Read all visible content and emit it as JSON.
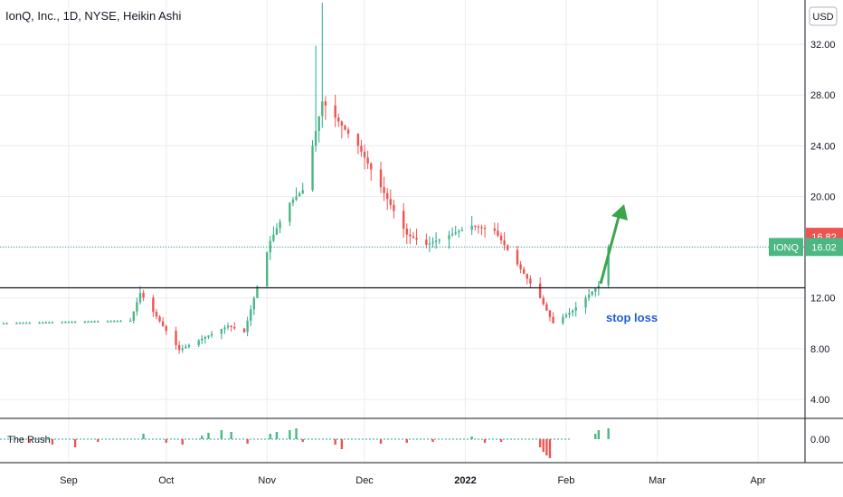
{
  "chart_data": {
    "type": "candlestick",
    "title": "IonQ, Inc., 1D, NYSE, Heikin Ashi",
    "currency": "USD",
    "symbol": "IONQ",
    "last_price": "16.02",
    "last_close_label": "16.82",
    "ylim": [
      2.5,
      35.5
    ],
    "y_ticks": [
      "4.00",
      "8.00",
      "12.00",
      "16.00",
      "20.00",
      "24.00",
      "28.00",
      "32.00"
    ],
    "x_ticks": [
      "Sep",
      "Oct",
      "Nov",
      "Dec",
      "2022",
      "Feb",
      "Mar",
      "Apr"
    ],
    "stop_loss": {
      "value": 12.8,
      "label": "stop loss"
    },
    "indicator": {
      "name": "The Rush",
      "zero_label": "0.00"
    },
    "colors": {
      "up": "#26a69a",
      "up_body": "#4cb782",
      "down": "#ef5350",
      "grid": "#e9ecf0",
      "arrow": "#3aa64a",
      "annotation": "#1e5bd8",
      "last_badge": "#ef5350",
      "symbol_badge": "#4cb782"
    },
    "anchors": [
      {
        "date": "2021-08-12",
        "price": 10.0
      },
      {
        "date": "2021-09-20",
        "price": 10.2
      },
      {
        "date": "2021-09-23",
        "price": 12.4
      },
      {
        "date": "2021-10-05",
        "price": 7.9
      },
      {
        "date": "2021-10-20",
        "price": 9.8
      },
      {
        "date": "2021-10-25",
        "price": 9.3
      },
      {
        "date": "2021-11-02",
        "price": 16.5
      },
      {
        "date": "2021-11-08",
        "price": 19.5
      },
      {
        "date": "2021-11-12",
        "price": 20.5
      },
      {
        "date": "2021-11-18",
        "price": 27.5
      },
      {
        "date": "2021-11-29",
        "price": 24.0
      },
      {
        "date": "2021-12-14",
        "price": 17.0
      },
      {
        "date": "2021-12-20",
        "price": 16.2
      },
      {
        "date": "2022-01-03",
        "price": 17.7
      },
      {
        "date": "2022-01-10",
        "price": 17.3
      },
      {
        "date": "2022-01-24",
        "price": 12.0
      },
      {
        "date": "2022-01-28",
        "price": 10.0
      },
      {
        "date": "2022-02-03",
        "price": 11.0
      },
      {
        "date": "2022-02-11",
        "price": 13.0
      },
      {
        "date": "2022-02-14",
        "price": 16.02
      }
    ]
  }
}
